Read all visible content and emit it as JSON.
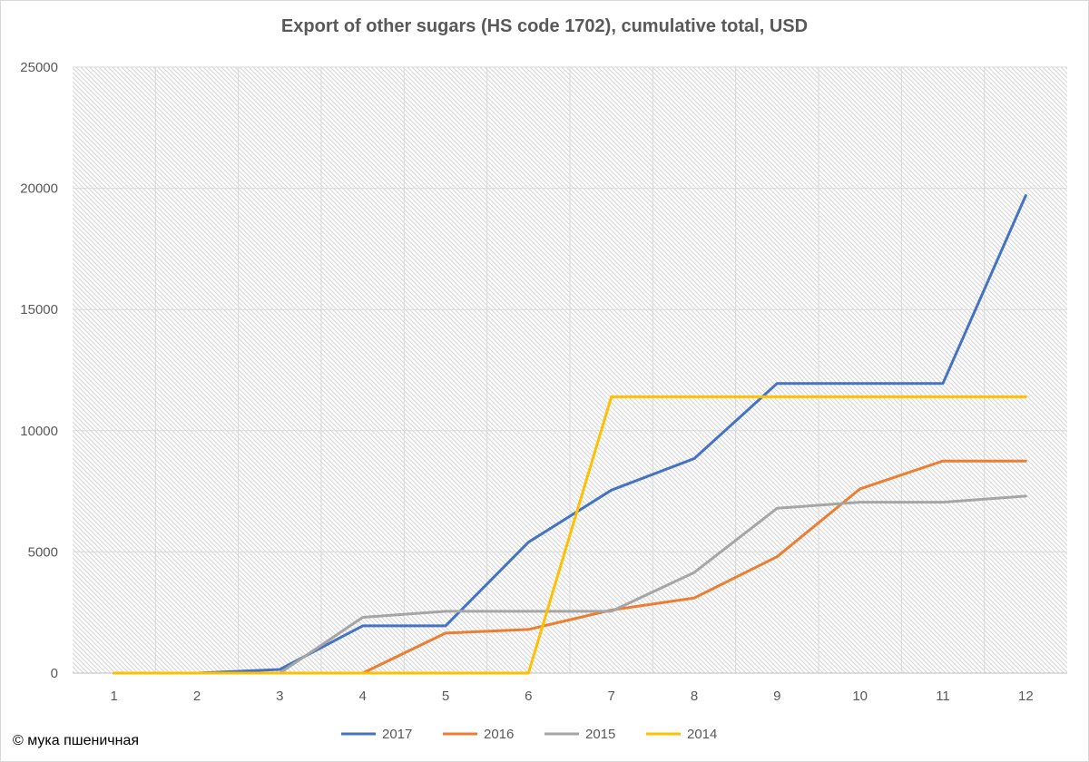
{
  "chart_data": {
    "type": "line",
    "title": "Export of other sugars (HS code 1702), cumulative total, USD",
    "xlabel": "",
    "ylabel": "",
    "x": [
      "1",
      "2",
      "3",
      "4",
      "5",
      "6",
      "7",
      "8",
      "9",
      "10",
      "11",
      "12"
    ],
    "ylim": [
      0,
      25000
    ],
    "yticks": [
      0,
      5000,
      10000,
      15000,
      20000,
      25000
    ],
    "grid": true,
    "legend_position": "bottom",
    "series": [
      {
        "name": "2017",
        "color": "#4472c4",
        "values": [
          0,
          0,
          150,
          1950,
          1950,
          5400,
          7550,
          8850,
          11950,
          11950,
          11950,
          19700
        ]
      },
      {
        "name": "2016",
        "color": "#ed7d31",
        "values": [
          0,
          0,
          0,
          0,
          1650,
          1800,
          2600,
          3100,
          4800,
          7600,
          8750,
          8750
        ]
      },
      {
        "name": "2015",
        "color": "#a5a5a5",
        "values": [
          0,
          0,
          0,
          2300,
          2550,
          2550,
          2550,
          4150,
          6800,
          7050,
          7050,
          7300
        ]
      },
      {
        "name": "2014",
        "color": "#ffc000",
        "values": [
          0,
          0,
          0,
          0,
          0,
          0,
          11400,
          11400,
          11400,
          11400,
          11400,
          11400
        ]
      }
    ]
  },
  "footer": {
    "copyright": "© мука пшеничная"
  }
}
